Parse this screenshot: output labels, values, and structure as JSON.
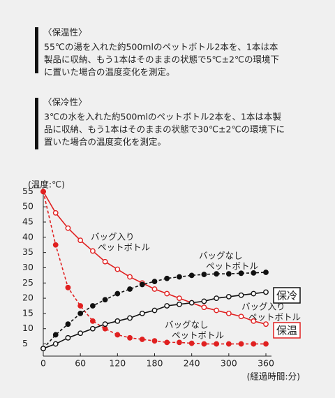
{
  "notes": [
    {
      "heading": "〈保温性〉",
      "lines": [
        "55℃の湯を入れた約500mlのペットボトル2本を、1本は本",
        "製品に収納、もう1本はそのままの状態で5℃±2℃の環境下",
        "に置いた場合の温度変化を測定。"
      ]
    },
    {
      "heading": "〈保冷性〉",
      "lines": [
        "3℃の水を入れた約500mlのペットボトル2本を、1本は本製",
        "品に収納、もう1本はそのままの状態で30℃±2℃の環境下に",
        "置いた場合の温度変化を測定。"
      ]
    }
  ],
  "chart_data": {
    "type": "line",
    "y_label": "(温度:℃)",
    "x_label": "(経過時間:分)",
    "x": [
      0,
      20,
      40,
      60,
      80,
      100,
      120,
      140,
      160,
      180,
      200,
      220,
      240,
      260,
      280,
      300,
      320,
      340,
      360
    ],
    "series": [
      {
        "color": "#e02020",
        "dashed": false,
        "values": [
          55,
          48,
          43,
          39,
          35.5,
          32,
          29.5,
          27,
          25,
          23,
          21.5,
          20,
          18.5,
          17,
          16,
          15,
          14,
          12.5,
          11.5
        ]
      },
      {
        "color": "#e02020",
        "dashed": true,
        "values": [
          55,
          37.5,
          23.5,
          17.5,
          12.5,
          10,
          8,
          7,
          6.5,
          6,
          5.5,
          5.5,
          5.2,
          5,
          5,
          5,
          5,
          5,
          5
        ]
      },
      {
        "color": "#111111",
        "dashed": true,
        "values": [
          3.5,
          8,
          11.5,
          15,
          17.5,
          19.5,
          21.5,
          23,
          24.5,
          25.5,
          26.5,
          27,
          27.5,
          27.8,
          28,
          28,
          28.2,
          28.3,
          28.5
        ]
      },
      {
        "color": "#111111",
        "dashed": false,
        "values": [
          3.5,
          5,
          7,
          8.5,
          10,
          11.5,
          12.5,
          13.5,
          15,
          16,
          17.5,
          18,
          18.5,
          19,
          20,
          20.5,
          21,
          21.5,
          22
        ]
      }
    ],
    "annotations": [
      {
        "lines": [
          "バッグ入り",
          "ペットボトル"
        ],
        "color": "#e02020"
      },
      {
        "lines": [
          "バッグなし",
          "ペットボトル"
        ],
        "color": "#111111"
      },
      {
        "lines": [
          "バッグ入り",
          "ペットボトル"
        ],
        "color": "#111111"
      },
      {
        "lines": [
          "バッグなし",
          "ペットボトル"
        ],
        "color": "#e02020"
      }
    ],
    "group_labels": [
      {
        "text": "保冷",
        "color": "#111111"
      },
      {
        "text": "保温",
        "color": "#e02020"
      }
    ],
    "xlim": [
      0,
      360
    ],
    "ylim": [
      1,
      56
    ],
    "xticks": [
      0,
      60,
      120,
      180,
      240,
      300,
      360
    ],
    "yticks": [
      5,
      10,
      15,
      20,
      25,
      30,
      35,
      40,
      45,
      50,
      55
    ],
    "grid": false
  }
}
